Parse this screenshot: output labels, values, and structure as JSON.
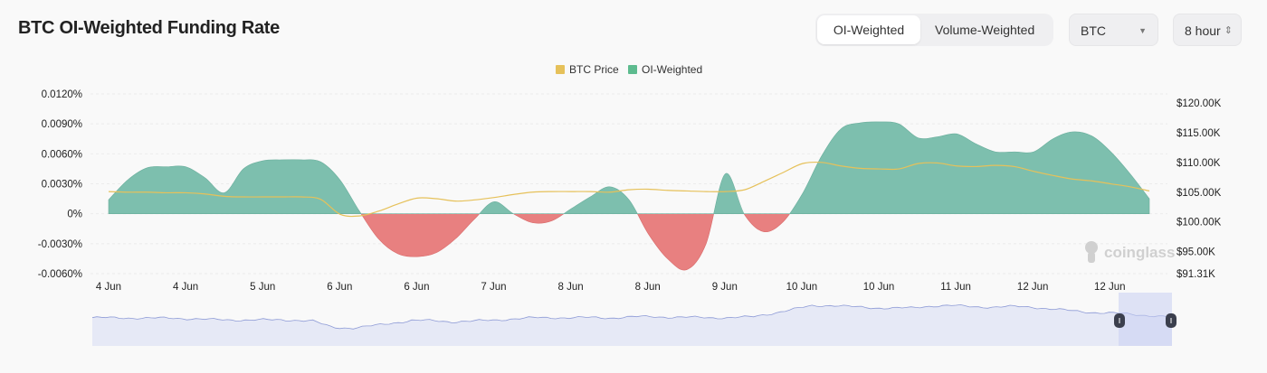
{
  "header": {
    "title": "BTC OI-Weighted Funding Rate",
    "toggle": [
      {
        "label": "OI-Weighted",
        "active": true
      },
      {
        "label": "Volume-Weighted",
        "active": false
      }
    ],
    "coin_select": "BTC",
    "interval_select": "8 hour"
  },
  "watermark": "coinglass",
  "chart_data": {
    "type": "area",
    "legend": [
      {
        "name": "BTC Price",
        "color": "#e6c15a"
      },
      {
        "name": "OI-Weighted",
        "color": "#5dbb8f"
      }
    ],
    "legend_position": "top-center",
    "x_tick_labels": [
      "4 Jun",
      "4 Jun",
      "5 Jun",
      "6 Jun",
      "6 Jun",
      "7 Jun",
      "8 Jun",
      "8 Jun",
      "9 Jun",
      "10 Jun",
      "10 Jun",
      "11 Jun",
      "12 Jun",
      "12 Jun"
    ],
    "y_left": {
      "ticks": [
        "0.0120%",
        "0.0090%",
        "0.0060%",
        "0.0030%",
        "0%",
        "-0.0030%",
        "-0.0060%"
      ],
      "range": [
        -0.006,
        0.012
      ],
      "unit": "%"
    },
    "y_right": {
      "ticks": [
        "$120.00K",
        "$115.00K",
        "$110.00K",
        "$105.00K",
        "$100.00K",
        "$95.00K",
        "$91.31K"
      ],
      "tick_values": [
        120,
        115,
        110,
        105,
        100,
        95,
        91.31
      ],
      "range": [
        91.31,
        121.5
      ],
      "unit": "K USD"
    },
    "grid": true,
    "colors": {
      "positive": "#7dbfae",
      "negative": "#e88080",
      "price": "#e6c15a",
      "navigator": "#8e9bd6"
    },
    "series": [
      {
        "name": "OI-Weighted",
        "values": [
          0.0014,
          0.0034,
          0.0046,
          0.0047,
          0.0047,
          0.0036,
          0.0021,
          0.0045,
          0.0053,
          0.0054,
          0.0054,
          0.0052,
          0.0034,
          0.0003,
          -0.0025,
          -0.004,
          -0.0043,
          -0.0039,
          -0.0025,
          -0.0005,
          0.0012,
          0.0,
          -0.0009,
          -0.0007,
          0.0005,
          0.0017,
          0.0027,
          0.0014,
          -0.002,
          -0.0045,
          -0.0056,
          -0.003,
          0.004,
          -0.0001,
          -0.0018,
          -0.0008,
          0.002,
          0.0058,
          0.0085,
          0.0091,
          0.0092,
          0.009,
          0.0076,
          0.0077,
          0.008,
          0.007,
          0.0062,
          0.0062,
          0.0062,
          0.0075,
          0.0082,
          0.0078,
          0.0062,
          0.004,
          0.0015
        ]
      },
      {
        "name": "BTC Price",
        "values": [
          105.1,
          105.0,
          105.0,
          104.9,
          104.9,
          104.7,
          104.3,
          104.2,
          104.2,
          104.2,
          104.2,
          103.8,
          101.3,
          101.0,
          101.8,
          103.0,
          104.0,
          103.9,
          103.5,
          103.7,
          104.1,
          104.6,
          105.0,
          105.1,
          105.1,
          105.1,
          105.0,
          105.4,
          105.5,
          105.3,
          105.2,
          105.1,
          105.1,
          105.4,
          106.8,
          108.3,
          109.8,
          110.0,
          109.4,
          109.0,
          108.9,
          108.9,
          109.8,
          109.9,
          109.4,
          109.3,
          109.5,
          109.3,
          108.5,
          107.8,
          107.2,
          106.9,
          106.4,
          105.9,
          105.2
        ]
      }
    ]
  }
}
